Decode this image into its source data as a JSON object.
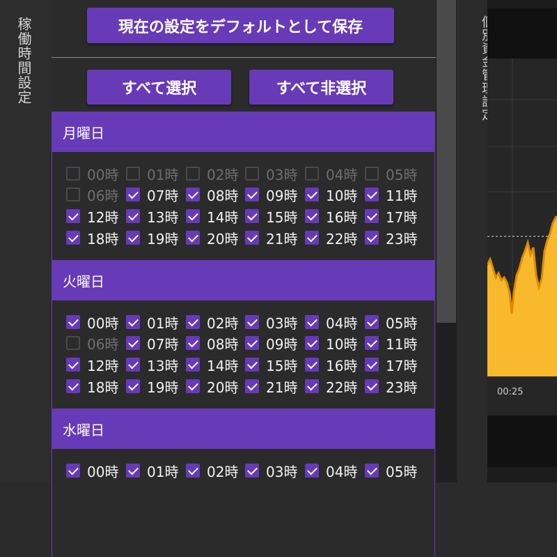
{
  "left_panel_title": "稼働時間設定",
  "right_panel_title": "個別資金管理設定",
  "buttons": {
    "save_default": "現在の設定をデフォルトとして保存",
    "select_all": "すべて選択",
    "deselect_all": "すべて非選択"
  },
  "days": [
    {
      "name": "月曜日",
      "hours": [
        {
          "label": "00時",
          "checked": false
        },
        {
          "label": "01時",
          "checked": false
        },
        {
          "label": "02時",
          "checked": false
        },
        {
          "label": "03時",
          "checked": false
        },
        {
          "label": "04時",
          "checked": false
        },
        {
          "label": "05時",
          "checked": false
        },
        {
          "label": "06時",
          "checked": false
        },
        {
          "label": "07時",
          "checked": true
        },
        {
          "label": "08時",
          "checked": true
        },
        {
          "label": "09時",
          "checked": true
        },
        {
          "label": "10時",
          "checked": true
        },
        {
          "label": "11時",
          "checked": true
        },
        {
          "label": "12時",
          "checked": true
        },
        {
          "label": "13時",
          "checked": true
        },
        {
          "label": "14時",
          "checked": true
        },
        {
          "label": "15時",
          "checked": true
        },
        {
          "label": "16時",
          "checked": true
        },
        {
          "label": "17時",
          "checked": true
        },
        {
          "label": "18時",
          "checked": true
        },
        {
          "label": "19時",
          "checked": true
        },
        {
          "label": "20時",
          "checked": true
        },
        {
          "label": "21時",
          "checked": true
        },
        {
          "label": "22時",
          "checked": true
        },
        {
          "label": "23時",
          "checked": true
        }
      ]
    },
    {
      "name": "火曜日",
      "hours": [
        {
          "label": "00時",
          "checked": true
        },
        {
          "label": "01時",
          "checked": true
        },
        {
          "label": "02時",
          "checked": true
        },
        {
          "label": "03時",
          "checked": true
        },
        {
          "label": "04時",
          "checked": true
        },
        {
          "label": "05時",
          "checked": true
        },
        {
          "label": "06時",
          "checked": false
        },
        {
          "label": "07時",
          "checked": true
        },
        {
          "label": "08時",
          "checked": true
        },
        {
          "label": "09時",
          "checked": true
        },
        {
          "label": "10時",
          "checked": true
        },
        {
          "label": "11時",
          "checked": true
        },
        {
          "label": "12時",
          "checked": true
        },
        {
          "label": "13時",
          "checked": true
        },
        {
          "label": "14時",
          "checked": true
        },
        {
          "label": "15時",
          "checked": true
        },
        {
          "label": "16時",
          "checked": true
        },
        {
          "label": "17時",
          "checked": true
        },
        {
          "label": "18時",
          "checked": true
        },
        {
          "label": "19時",
          "checked": true
        },
        {
          "label": "20時",
          "checked": true
        },
        {
          "label": "21時",
          "checked": true
        },
        {
          "label": "22時",
          "checked": true
        },
        {
          "label": "23時",
          "checked": true
        }
      ]
    },
    {
      "name": "水曜日",
      "hours": [
        {
          "label": "00時",
          "checked": true
        },
        {
          "label": "01時",
          "checked": true
        },
        {
          "label": "02時",
          "checked": true
        },
        {
          "label": "03時",
          "checked": true
        },
        {
          "label": "04時",
          "checked": true
        },
        {
          "label": "05時",
          "checked": true
        }
      ]
    }
  ],
  "chart": {
    "x_tick": "00:25",
    "fill_color": "#f9b92c",
    "line_color": "#e08a00",
    "accent_color": "#673ab7"
  }
}
